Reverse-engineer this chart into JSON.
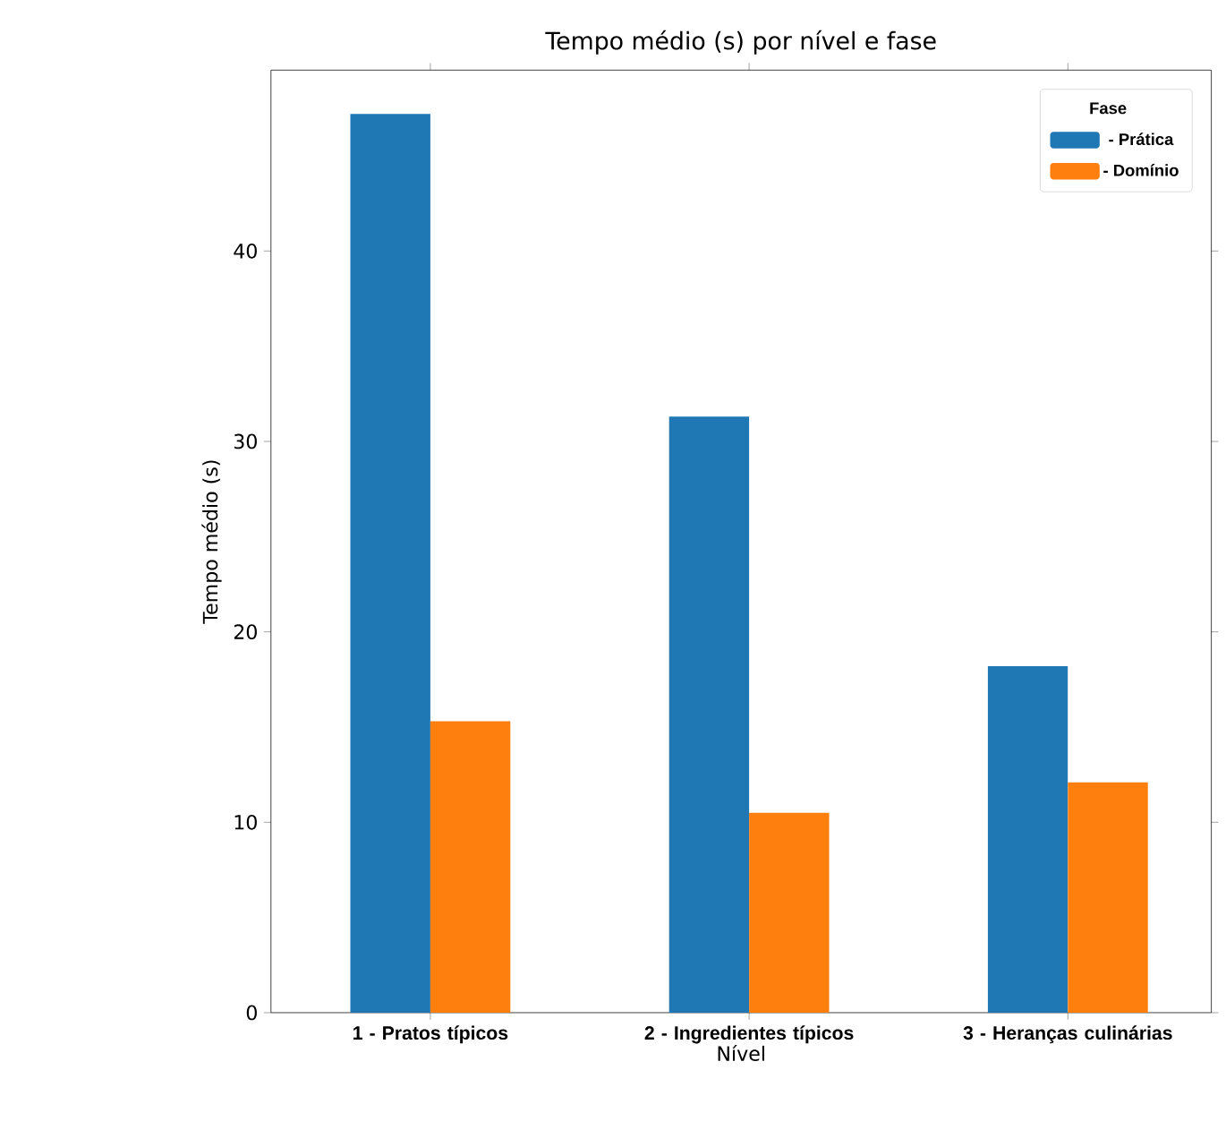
{
  "chart_data": {
    "type": "bar",
    "title": "Tempo médio (s) por nível e fase",
    "xlabel": "Nível",
    "ylabel": "Tempo médio (s)",
    "categories": [
      "1 - Pratos típicos",
      "2 - Ingredientes típicos",
      "3 - Heranças culinárias"
    ],
    "legend_title": "Fase",
    "legend": "top right",
    "series": [
      {
        "name": "- Prática",
        "color": "#1f77b4",
        "values": [
          47.2,
          31.3,
          18.2
        ]
      },
      {
        "name": "- Domínio",
        "color": "#ff7f0e",
        "values": [
          15.3,
          10.5,
          12.1
        ]
      }
    ],
    "ylim": [
      0,
      49.5
    ],
    "yticks": [
      0,
      10,
      20,
      30,
      40
    ],
    "grid": false
  }
}
